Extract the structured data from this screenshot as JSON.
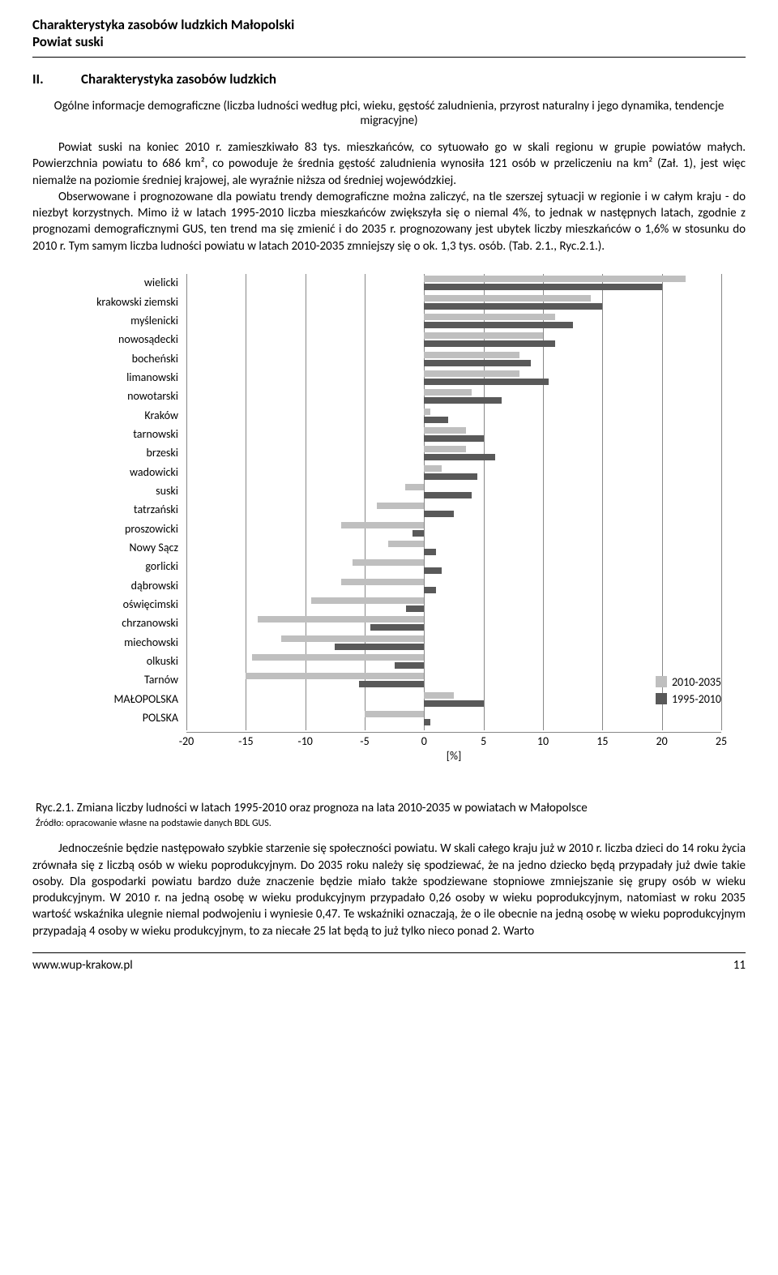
{
  "header": {
    "title": "Charakterystyka zasobów ludzkich Małopolski",
    "subtitle": "Powiat suski"
  },
  "section": {
    "number": "II.",
    "title": "Charakterystyka zasobów ludzkich",
    "subheading": "Ogólne informacje demograficzne (liczba ludności według płci, wieku, gęstość zaludnienia, przyrost naturalny i jego dynamika, tendencje migracyjne)"
  },
  "para1": "Powiat suski na koniec 2010 r. zamieszkiwało 83 tys. mieszkańców, co sytuowało go w skali regionu w grupie powiatów małych. Powierzchnia powiatu to 686 km², co powoduje że średnia gęstość zaludnienia wynosiła 121 osób w przeliczeniu na km² (Zał. 1), jest więc niemalże na poziomie średniej krajowej, ale wyraźnie niższa od średniej wojewódzkiej.",
  "para2": "Obserwowane i prognozowane dla powiatu trendy demograficzne można zaliczyć, na tle szerszej sytuacji w regionie i w całym kraju - do niezbyt korzystnych. Mimo iż w latach 1995-2010 liczba mieszkańców zwiększyła się o niemal 4%, to jednak w następnych latach, zgodnie z prognozami demograficznymi GUS, ten trend ma się zmienić i do 2035 r. prognozowany jest ubytek liczby mieszkańców o 1,6% w stosunku do 2010 r. Tym samym liczba ludności powiatu w latach 2010-2035 zmniejszy się o ok. 1,3 tys. osób. (Tab. 2.1., Ryc.2.1.).",
  "chart": {
    "type": "bar",
    "categories": [
      "wielicki",
      "krakowski ziemski",
      "myślenicki",
      "nowosądecki",
      "bocheński",
      "limanowski",
      "nowotarski",
      "Kraków",
      "tarnowski",
      "brzeski",
      "wadowicki",
      "suski",
      "tatrzański",
      "proszowicki",
      "Nowy Sącz",
      "gorlicki",
      "dąbrowski",
      "oświęcimski",
      "chrzanowski",
      "miechowski",
      "olkuski",
      "Tarnów",
      "MAŁOPOLSKA",
      "POLSKA"
    ],
    "series1_name": "2010-2035",
    "series2_name": "1995-2010",
    "series1_color": "#bfbfbf",
    "series2_color": "#595959",
    "xmin": -20,
    "xmax": 25,
    "xtick_step": 5,
    "xlabel": "[%]",
    "series1": [
      22,
      14,
      11,
      10,
      8,
      8,
      4,
      0.5,
      3.5,
      3.5,
      1.5,
      -1.6,
      -4,
      -7,
      -3,
      -6,
      -7,
      -9.5,
      -14,
      -12,
      -14.5,
      -15,
      2.5,
      -5
    ],
    "series2": [
      20,
      15,
      12.5,
      11,
      9,
      10.5,
      6.5,
      2,
      5,
      6,
      4.5,
      4,
      2.5,
      -1,
      1,
      1.5,
      1,
      -1.5,
      -4.5,
      -7.5,
      -2.5,
      -5.5,
      5,
      0.5
    ],
    "background_color": "#ffffff",
    "cat_fontsize": 14,
    "tick_fontsize": 14
  },
  "caption": "Ryc.2.1. Zmiana liczby ludności w latach 1995-2010 oraz prognoza na lata 2010-2035 w powiatach w Małopolsce",
  "source": "Źródło: opracowanie własne na podstawie danych BDL GUS.",
  "para3": "Jednocześnie będzie następowało szybkie starzenie się społeczności powiatu. W skali całego kraju już w 2010 r. liczba dzieci do 14 roku życia zrównała się z liczbą osób w wieku poprodukcyjnym. Do 2035 roku należy się spodziewać, że na jedno dziecko będą przypadały już dwie takie osoby. Dla gospodarki powiatu bardzo duże znaczenie będzie miało także spodziewane stopniowe zmniejszanie się grupy osób w wieku produkcyjnym. W 2010 r. na jedną osobę w wieku produkcyjnym przypadało 0,26 osoby w wieku poprodukcyjnym, natomiast w roku 2035 wartość wskaźnika ulegnie niemal podwojeniu i wyniesie 0,47. Te wskaźniki oznaczają, że o ile obecnie na jedną osobę w wieku poprodukcyjnym przypadają 4 osoby w wieku produkcyjnym, to za niecałe 25 lat będą to już tylko nieco ponad 2. Warto",
  "footer": {
    "url": "www.wup-krakow.pl",
    "page": "11"
  }
}
